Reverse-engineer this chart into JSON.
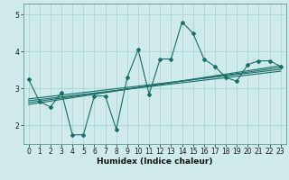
{
  "title": "",
  "xlabel": "Humidex (Indice chaleur)",
  "ylabel": "",
  "bg_color": "#ceeaea",
  "grid_color": "#aad0d0",
  "line_color": "#1a6e6a",
  "x_main": [
    0,
    1,
    2,
    3,
    4,
    5,
    6,
    7,
    8,
    9,
    10,
    11,
    12,
    13,
    14,
    15,
    16,
    17,
    18,
    19,
    20,
    21,
    22,
    23
  ],
  "y_main": [
    3.25,
    2.65,
    2.5,
    2.9,
    1.75,
    1.75,
    2.8,
    2.8,
    1.9,
    3.3,
    4.05,
    2.85,
    3.8,
    3.8,
    4.8,
    4.5,
    3.8,
    3.6,
    3.3,
    3.2,
    3.65,
    3.75,
    3.75,
    3.6
  ],
  "trend_lines": [
    {
      "x": [
        0,
        23
      ],
      "y": [
        2.72,
        3.52
      ]
    },
    {
      "x": [
        0,
        23
      ],
      "y": [
        2.62,
        3.57
      ]
    },
    {
      "x": [
        0,
        23
      ],
      "y": [
        2.57,
        3.62
      ]
    },
    {
      "x": [
        0,
        23
      ],
      "y": [
        2.67,
        3.47
      ]
    }
  ],
  "xlim": [
    -0.5,
    23.5
  ],
  "ylim": [
    1.5,
    5.3
  ],
  "yticks": [
    2,
    3,
    4,
    5
  ],
  "xticks": [
    0,
    1,
    2,
    3,
    4,
    5,
    6,
    7,
    8,
    9,
    10,
    11,
    12,
    13,
    14,
    15,
    16,
    17,
    18,
    19,
    20,
    21,
    22,
    23
  ],
  "tick_fontsize": 5.5,
  "xlabel_fontsize": 6.5,
  "marker": "D",
  "marker_size": 2.0,
  "linewidth": 0.8
}
